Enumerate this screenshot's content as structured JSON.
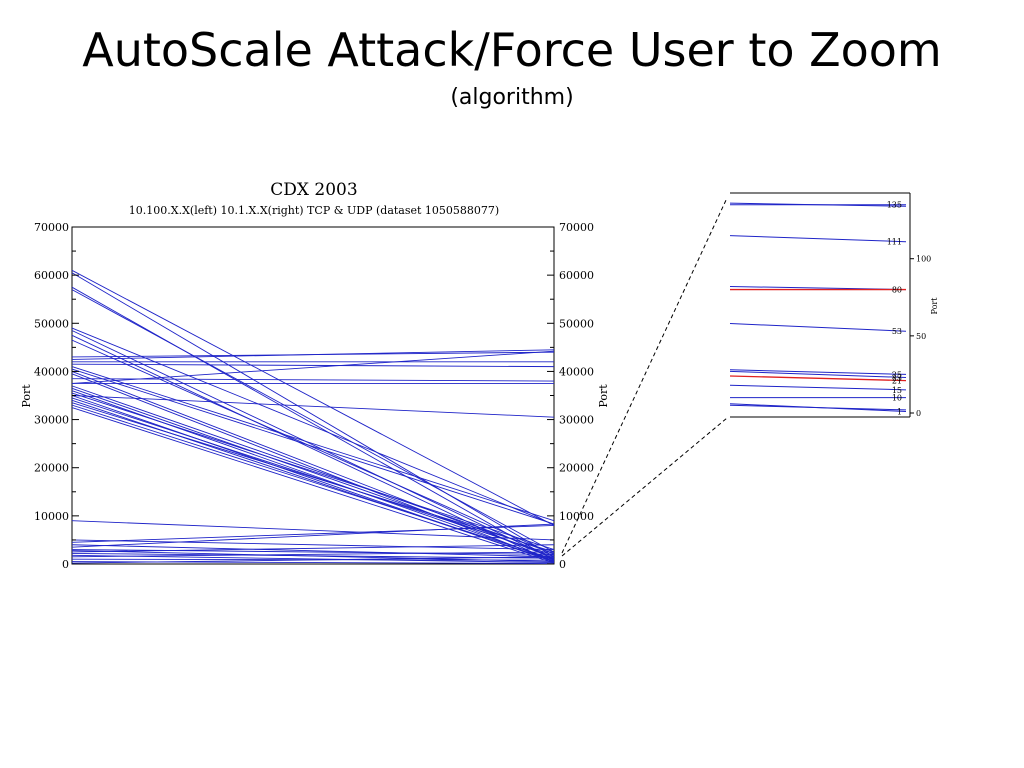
{
  "slide": {
    "title": "AutoScale Attack/Force User to Zoom",
    "subtitle": "(algorithm)"
  },
  "chart_data": [
    {
      "type": "parallel-coordinates",
      "title": "CDX 2003",
      "subtitle": "10.100.X.X(left) 10.1.X.X(right) TCP & UDP   (dataset 1050588077)",
      "left_axis": {
        "label": "Port",
        "range": [
          0,
          70000
        ],
        "ticks": [
          "0",
          "10000",
          "20000",
          "30000",
          "40000",
          "50000",
          "60000",
          "70000"
        ]
      },
      "right_axis": {
        "label": "Port",
        "range": [
          0,
          70000
        ],
        "ticks": [
          "0",
          "10000",
          "20000",
          "30000",
          "40000",
          "50000",
          "60000",
          "70000"
        ]
      },
      "line_color": "#1f24c8",
      "lines": [
        [
          61000,
          8000
        ],
        [
          60500,
          1500
        ],
        [
          57500,
          800
        ],
        [
          57000,
          2500
        ],
        [
          49000,
          8200
        ],
        [
          48500,
          1000
        ],
        [
          47500,
          300
        ],
        [
          46500,
          2000
        ],
        [
          43000,
          44000
        ],
        [
          42500,
          44500
        ],
        [
          42000,
          42000
        ],
        [
          41500,
          41000
        ],
        [
          41000,
          9000
        ],
        [
          40500,
          8300
        ],
        [
          40000,
          1200
        ],
        [
          39500,
          500
        ],
        [
          38500,
          38000
        ],
        [
          37500,
          44200
        ],
        [
          37500,
          37500
        ],
        [
          37000,
          2200
        ],
        [
          36500,
          1500
        ],
        [
          36000,
          800
        ],
        [
          35500,
          3000
        ],
        [
          35000,
          30500
        ],
        [
          35000,
          400
        ],
        [
          34500,
          1800
        ],
        [
          34000,
          600
        ],
        [
          33500,
          2500
        ],
        [
          33000,
          1000
        ],
        [
          32500,
          200
        ],
        [
          9000,
          5000
        ],
        [
          5000,
          3000
        ],
        [
          4500,
          8000
        ],
        [
          4000,
          1500
        ],
        [
          3500,
          8300
        ],
        [
          3000,
          2000
        ],
        [
          2800,
          500
        ],
        [
          2500,
          4000
        ],
        [
          2200,
          1200
        ],
        [
          1800,
          300
        ],
        [
          1500,
          2500
        ],
        [
          1000,
          800
        ],
        [
          500,
          100
        ],
        [
          200,
          1500
        ]
      ]
    },
    {
      "type": "parallel-coordinates",
      "title": "",
      "axis": {
        "label": "Port",
        "range": [
          0,
          140
        ],
        "ticks": [
          "0",
          "50",
          "100"
        ]
      },
      "point_labels": [
        "135",
        "111",
        "80",
        "53",
        "25",
        "23",
        "21",
        "15",
        "10",
        "1"
      ],
      "lines": [
        {
          "left": 135,
          "right": 135,
          "color": "#1f24c8"
        },
        {
          "left": 136,
          "right": 134,
          "color": "#1f24c8"
        },
        {
          "left": 115,
          "right": 111,
          "color": "#1f24c8"
        },
        {
          "left": 82,
          "right": 80,
          "color": "#1f24c8"
        },
        {
          "left": 80,
          "right": 80,
          "color": "#e02020"
        },
        {
          "left": 58,
          "right": 53,
          "color": "#1f24c8"
        },
        {
          "left": 28,
          "right": 25,
          "color": "#1f24c8"
        },
        {
          "left": 27,
          "right": 23,
          "color": "#1f24c8"
        },
        {
          "left": 24,
          "right": 21,
          "color": "#e02020"
        },
        {
          "left": 18,
          "right": 15,
          "color": "#1f24c8"
        },
        {
          "left": 10,
          "right": 10,
          "color": "#1f24c8"
        },
        {
          "left": 6,
          "right": 1,
          "color": "#1f24c8"
        },
        {
          "left": 5,
          "right": 2,
          "color": "#1f24c8"
        }
      ]
    }
  ]
}
